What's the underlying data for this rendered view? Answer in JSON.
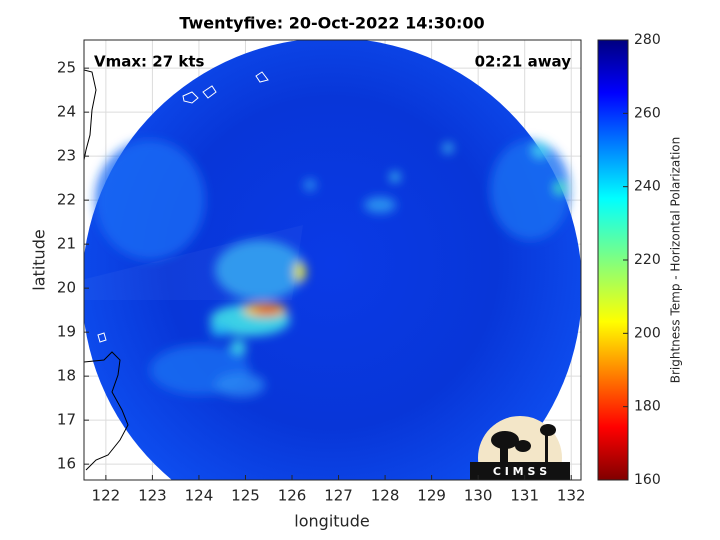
{
  "chart_data": {
    "type": "map",
    "title": "Twentyfive: 20-Oct-2022 14:30:00",
    "annotations": {
      "left": "Vmax: 27 kts",
      "right": "02:21 away"
    },
    "xlabel": "longitude",
    "ylabel": "latitude",
    "xlim": [
      121.53,
      132.21
    ],
    "ylim": [
      15.64,
      25.64
    ],
    "xticks": [
      122,
      123,
      124,
      125,
      126,
      127,
      128,
      129,
      130,
      131,
      132
    ],
    "yticks": [
      16,
      17,
      18,
      19,
      20,
      21,
      22,
      23,
      24,
      25
    ],
    "grid": true,
    "colorbar": {
      "label": "Brightness Temp - Horizontal Polarization",
      "lim": [
        160,
        280
      ],
      "ticks": [
        160,
        180,
        200,
        220,
        240,
        260,
        280
      ]
    },
    "logo_text": "C I M S S"
  }
}
